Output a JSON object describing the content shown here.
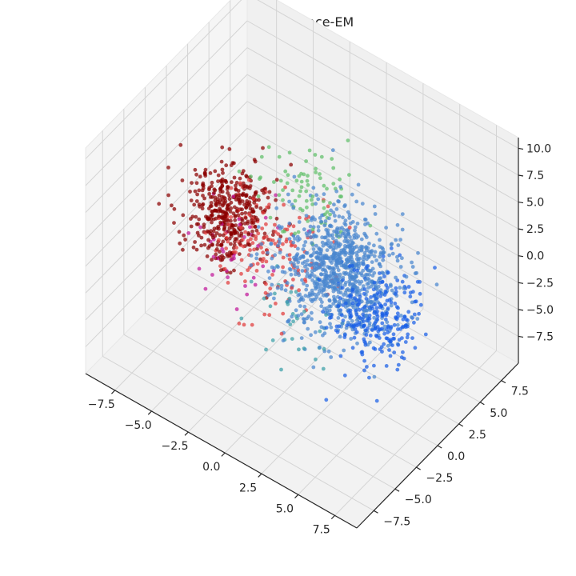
{
  "chart_data": {
    "type": "scatter",
    "title": "Inferred, Laplace-EM",
    "projection": "3d",
    "grid": true,
    "legend": "none",
    "xlim": [
      -9.5,
      9
    ],
    "ylim": [
      -9.5,
      9.5
    ],
    "zlim": [
      -10,
      11
    ],
    "x_ticks": [
      "−7.5",
      "−5.0",
      "−2.5",
      "0.0",
      "2.5",
      "5.0",
      "7.5"
    ],
    "y_ticks": [
      "−7.5",
      "−5.0",
      "−2.5",
      "0.0",
      "2.5",
      "5.0",
      "7.5"
    ],
    "z_ticks": [
      "−7.5",
      "−5.0",
      "−2.5",
      "0.0",
      "2.5",
      "5.0",
      "7.5",
      "10.0"
    ],
    "x_tick_values": [
      -7.5,
      -5,
      -2.5,
      0,
      2.5,
      5,
      7.5
    ],
    "y_tick_values": [
      -7.5,
      -5,
      -2.5,
      0,
      2.5,
      5,
      7.5
    ],
    "z_tick_values": [
      -7.5,
      -5,
      -2.5,
      0,
      2.5,
      5,
      7.5,
      10
    ],
    "series": [
      {
        "color": "#1a5fe6",
        "center": [
          5.5,
          -1.0,
          0.0
        ],
        "spread": [
          2.4,
          2.8,
          3.2
        ],
        "count": 260
      },
      {
        "color": "#4a86cf",
        "center": [
          2.0,
          0.5,
          0.5
        ],
        "spread": [
          3.2,
          3.2,
          3.8
        ],
        "count": 900
      },
      {
        "color": "#8b0000",
        "center": [
          -5.5,
          0.5,
          0.0
        ],
        "spread": [
          2.2,
          2.8,
          3.0
        ],
        "count": 420
      },
      {
        "color": "#e03a3a",
        "center": [
          -2.5,
          0.0,
          -1.0
        ],
        "spread": [
          3.2,
          3.4,
          3.4
        ],
        "count": 150
      },
      {
        "color": "#5fbf6a",
        "center": [
          -1.5,
          2.5,
          3.5
        ],
        "spread": [
          3.0,
          3.0,
          2.5
        ],
        "count": 80
      },
      {
        "color": "#c0179a",
        "center": [
          -4.0,
          -1.0,
          -1.5
        ],
        "spread": [
          2.5,
          3.0,
          3.0
        ],
        "count": 40
      },
      {
        "color": "#3aa0a8",
        "center": [
          1.0,
          -2.5,
          -3.0
        ],
        "spread": [
          3.0,
          2.5,
          2.5
        ],
        "count": 35
      }
    ]
  }
}
